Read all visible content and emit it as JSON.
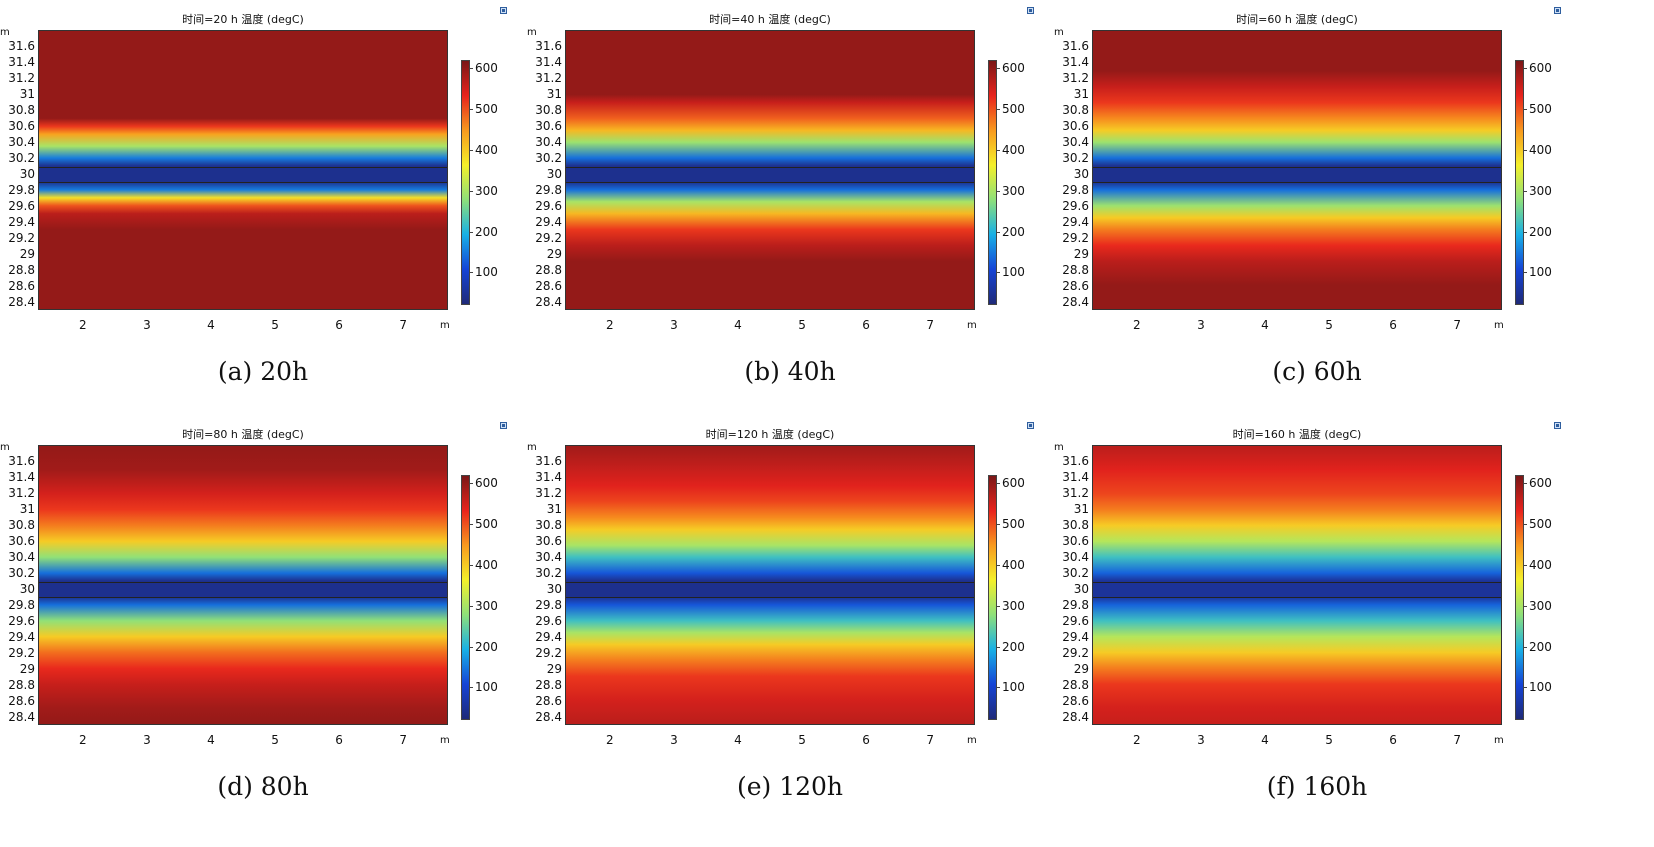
{
  "x_unit": "m",
  "y_unit": "m",
  "colorbar_colors": [
    "#1f2a78",
    "#1544d6",
    "#18b0e6",
    "#8ee07a",
    "#f4f02a",
    "#f89a1e",
    "#e8231d",
    "#7a1717"
  ],
  "chart_data": [
    {
      "type": "heatmap",
      "title": "时间=20 h  温度 (degC)",
      "caption": "(a) 20h",
      "xlabel": "m",
      "ylabel": "m",
      "xticks": [
        "2",
        "3",
        "4",
        "5",
        "6",
        "7"
      ],
      "yticks": [
        "31.6",
        "31.4",
        "31.2",
        "31",
        "30.8",
        "30.6",
        "30.4",
        "30.2",
        "30",
        "29.8",
        "29.6",
        "29.4",
        "29.2",
        "29",
        "28.8",
        "28.6",
        "28.4"
      ],
      "xlim": [
        1.3,
        7.7
      ],
      "ylim": [
        28.3,
        31.8
      ],
      "colorbar_ticks": [
        "100",
        "200",
        "300",
        "400",
        "500",
        "600"
      ],
      "colorbar_range": [
        20,
        620
      ],
      "temperature_profile": [
        [
          31.8,
          600
        ],
        [
          30.7,
          600
        ],
        [
          30.6,
          520
        ],
        [
          30.5,
          440
        ],
        [
          30.35,
          300
        ],
        [
          30.2,
          150
        ],
        [
          30.1,
          40
        ],
        [
          29.9,
          40
        ],
        [
          29.8,
          150
        ],
        [
          29.7,
          380
        ],
        [
          29.6,
          500
        ],
        [
          29.5,
          570
        ],
        [
          29.3,
          600
        ],
        [
          28.3,
          600
        ]
      ]
    },
    {
      "type": "heatmap",
      "title": "时间=40 h  温度 (degC)",
      "caption": "(b) 40h",
      "xlabel": "m",
      "ylabel": "m",
      "xticks": [
        "2",
        "3",
        "4",
        "5",
        "6",
        "7"
      ],
      "yticks": [
        "31.6",
        "31.4",
        "31.2",
        "31",
        "30.8",
        "30.6",
        "30.4",
        "30.2",
        "30",
        "29.8",
        "29.6",
        "29.4",
        "29.2",
        "29",
        "28.8",
        "28.6",
        "28.4"
      ],
      "xlim": [
        1.3,
        7.7
      ],
      "ylim": [
        28.3,
        31.8
      ],
      "colorbar_ticks": [
        "100",
        "200",
        "300",
        "400",
        "500",
        "600"
      ],
      "colorbar_range": [
        20,
        620
      ],
      "temperature_profile": [
        [
          31.8,
          600
        ],
        [
          31.0,
          600
        ],
        [
          30.9,
          560
        ],
        [
          30.7,
          490
        ],
        [
          30.55,
          420
        ],
        [
          30.4,
          290
        ],
        [
          30.2,
          140
        ],
        [
          30.1,
          40
        ],
        [
          29.9,
          40
        ],
        [
          29.8,
          140
        ],
        [
          29.65,
          300
        ],
        [
          29.5,
          420
        ],
        [
          29.3,
          520
        ],
        [
          29.1,
          570
        ],
        [
          28.9,
          600
        ],
        [
          28.3,
          600
        ]
      ]
    },
    {
      "type": "heatmap",
      "title": "时间=60 h  温度 (degC)",
      "caption": "(c) 60h",
      "xlabel": "m",
      "ylabel": "m",
      "xticks": [
        "2",
        "3",
        "4",
        "5",
        "6",
        "7"
      ],
      "yticks": [
        "31.6",
        "31.4",
        "31.2",
        "31",
        "30.8",
        "30.6",
        "30.4",
        "30.2",
        "30",
        "29.8",
        "29.6",
        "29.4",
        "29.2",
        "29",
        "28.8",
        "28.6",
        "28.4"
      ],
      "xlim": [
        1.3,
        7.7
      ],
      "ylim": [
        28.3,
        31.8
      ],
      "colorbar_ticks": [
        "100",
        "200",
        "300",
        "400",
        "500",
        "600"
      ],
      "colorbar_range": [
        20,
        620
      ],
      "temperature_profile": [
        [
          31.8,
          600
        ],
        [
          31.3,
          600
        ],
        [
          31.1,
          560
        ],
        [
          30.9,
          520
        ],
        [
          30.7,
          460
        ],
        [
          30.55,
          400
        ],
        [
          30.4,
          290
        ],
        [
          30.2,
          140
        ],
        [
          30.1,
          40
        ],
        [
          29.9,
          40
        ],
        [
          29.8,
          140
        ],
        [
          29.6,
          290
        ],
        [
          29.45,
          400
        ],
        [
          29.3,
          470
        ],
        [
          29.1,
          530
        ],
        [
          28.9,
          570
        ],
        [
          28.6,
          600
        ],
        [
          28.3,
          600
        ]
      ]
    },
    {
      "type": "heatmap",
      "title": "时间=80 h  温度 (degC)",
      "caption": "(d) 80h",
      "xlabel": "m",
      "ylabel": "m",
      "xticks": [
        "2",
        "3",
        "4",
        "5",
        "6",
        "7"
      ],
      "yticks": [
        "31.6",
        "31.4",
        "31.2",
        "31",
        "30.8",
        "30.6",
        "30.4",
        "30.2",
        "30",
        "29.8",
        "29.6",
        "29.4",
        "29.2",
        "29",
        "28.8",
        "28.6",
        "28.4"
      ],
      "xlim": [
        1.3,
        7.7
      ],
      "ylim": [
        28.3,
        31.8
      ],
      "colorbar_ticks": [
        "100",
        "200",
        "300",
        "400",
        "500",
        "600"
      ],
      "colorbar_range": [
        20,
        620
      ],
      "temperature_profile": [
        [
          31.8,
          600
        ],
        [
          31.5,
          590
        ],
        [
          31.2,
          550
        ],
        [
          31.0,
          520
        ],
        [
          30.8,
          470
        ],
        [
          30.6,
          400
        ],
        [
          30.4,
          280
        ],
        [
          30.2,
          140
        ],
        [
          30.1,
          40
        ],
        [
          29.9,
          40
        ],
        [
          29.8,
          140
        ],
        [
          29.6,
          280
        ],
        [
          29.4,
          400
        ],
        [
          29.2,
          480
        ],
        [
          29.0,
          530
        ],
        [
          28.8,
          560
        ],
        [
          28.5,
          590
        ],
        [
          28.3,
          600
        ]
      ]
    },
    {
      "type": "heatmap",
      "title": "时间=120 h  温度 (degC)",
      "caption": "(e) 120h",
      "xlabel": "m",
      "ylabel": "m",
      "xticks": [
        "2",
        "3",
        "4",
        "5",
        "6",
        "7"
      ],
      "yticks": [
        "31.6",
        "31.4",
        "31.2",
        "31",
        "30.8",
        "30.6",
        "30.4",
        "30.2",
        "30",
        "29.8",
        "29.6",
        "29.4",
        "29.2",
        "29",
        "28.8",
        "28.6",
        "28.4"
      ],
      "xlim": [
        1.3,
        7.7
      ],
      "ylim": [
        28.3,
        31.8
      ],
      "colorbar_ticks": [
        "100",
        "200",
        "300",
        "400",
        "500",
        "600"
      ],
      "colorbar_range": [
        20,
        620
      ],
      "temperature_profile": [
        [
          31.8,
          590
        ],
        [
          31.6,
          570
        ],
        [
          31.3,
          540
        ],
        [
          31.1,
          510
        ],
        [
          30.9,
          460
        ],
        [
          30.75,
          400
        ],
        [
          30.55,
          300
        ],
        [
          30.4,
          220
        ],
        [
          30.2,
          120
        ],
        [
          30.1,
          40
        ],
        [
          29.9,
          40
        ],
        [
          29.8,
          120
        ],
        [
          29.6,
          220
        ],
        [
          29.45,
          300
        ],
        [
          29.3,
          400
        ],
        [
          29.1,
          470
        ],
        [
          28.9,
          520
        ],
        [
          28.6,
          550
        ],
        [
          28.3,
          570
        ]
      ]
    },
    {
      "type": "heatmap",
      "title": "时间=160 h  温度 (degC)",
      "caption": "(f) 160h",
      "xlabel": "m",
      "ylabel": "m",
      "xticks": [
        "2",
        "3",
        "4",
        "5",
        "6",
        "7"
      ],
      "yticks": [
        "31.6",
        "31.4",
        "31.2",
        "31",
        "30.8",
        "30.6",
        "30.4",
        "30.2",
        "30",
        "29.8",
        "29.6",
        "29.4",
        "29.2",
        "29",
        "28.8",
        "28.6",
        "28.4"
      ],
      "xlim": [
        1.3,
        7.7
      ],
      "ylim": [
        28.3,
        31.8
      ],
      "colorbar_ticks": [
        "100",
        "200",
        "300",
        "400",
        "500",
        "600"
      ],
      "colorbar_range": [
        20,
        620
      ],
      "temperature_profile": [
        [
          31.8,
          570
        ],
        [
          31.5,
          540
        ],
        [
          31.2,
          510
        ],
        [
          31.0,
          470
        ],
        [
          30.8,
          400
        ],
        [
          30.6,
          310
        ],
        [
          30.4,
          220
        ],
        [
          30.2,
          130
        ],
        [
          30.1,
          50
        ],
        [
          29.9,
          50
        ],
        [
          29.8,
          130
        ],
        [
          29.6,
          220
        ],
        [
          29.4,
          310
        ],
        [
          29.2,
          400
        ],
        [
          29.0,
          470
        ],
        [
          28.8,
          520
        ],
        [
          28.5,
          550
        ],
        [
          28.3,
          560
        ]
      ]
    }
  ]
}
